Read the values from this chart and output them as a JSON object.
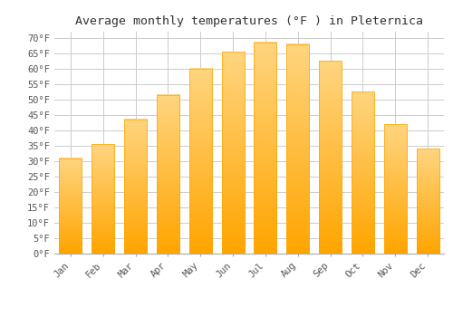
{
  "title": "Average monthly temperatures (°F ) in Pleternica",
  "months": [
    "Jan",
    "Feb",
    "Mar",
    "Apr",
    "May",
    "Jun",
    "Jul",
    "Aug",
    "Sep",
    "Oct",
    "Nov",
    "Dec"
  ],
  "values": [
    31,
    35.5,
    43.5,
    51.5,
    60,
    65.5,
    68.5,
    68,
    62.5,
    52.5,
    42,
    34
  ],
  "bar_color_top": "#FFD966",
  "bar_color_bottom": "#FFA500",
  "background_color": "#FFFFFF",
  "plot_bg_color": "#FFFFFF",
  "grid_color": "#CCCCCC",
  "ylim": [
    0,
    72
  ],
  "yticks": [
    0,
    5,
    10,
    15,
    20,
    25,
    30,
    35,
    40,
    45,
    50,
    55,
    60,
    65,
    70
  ],
  "title_fontsize": 9.5,
  "tick_fontsize": 7.5,
  "font_family": "monospace"
}
